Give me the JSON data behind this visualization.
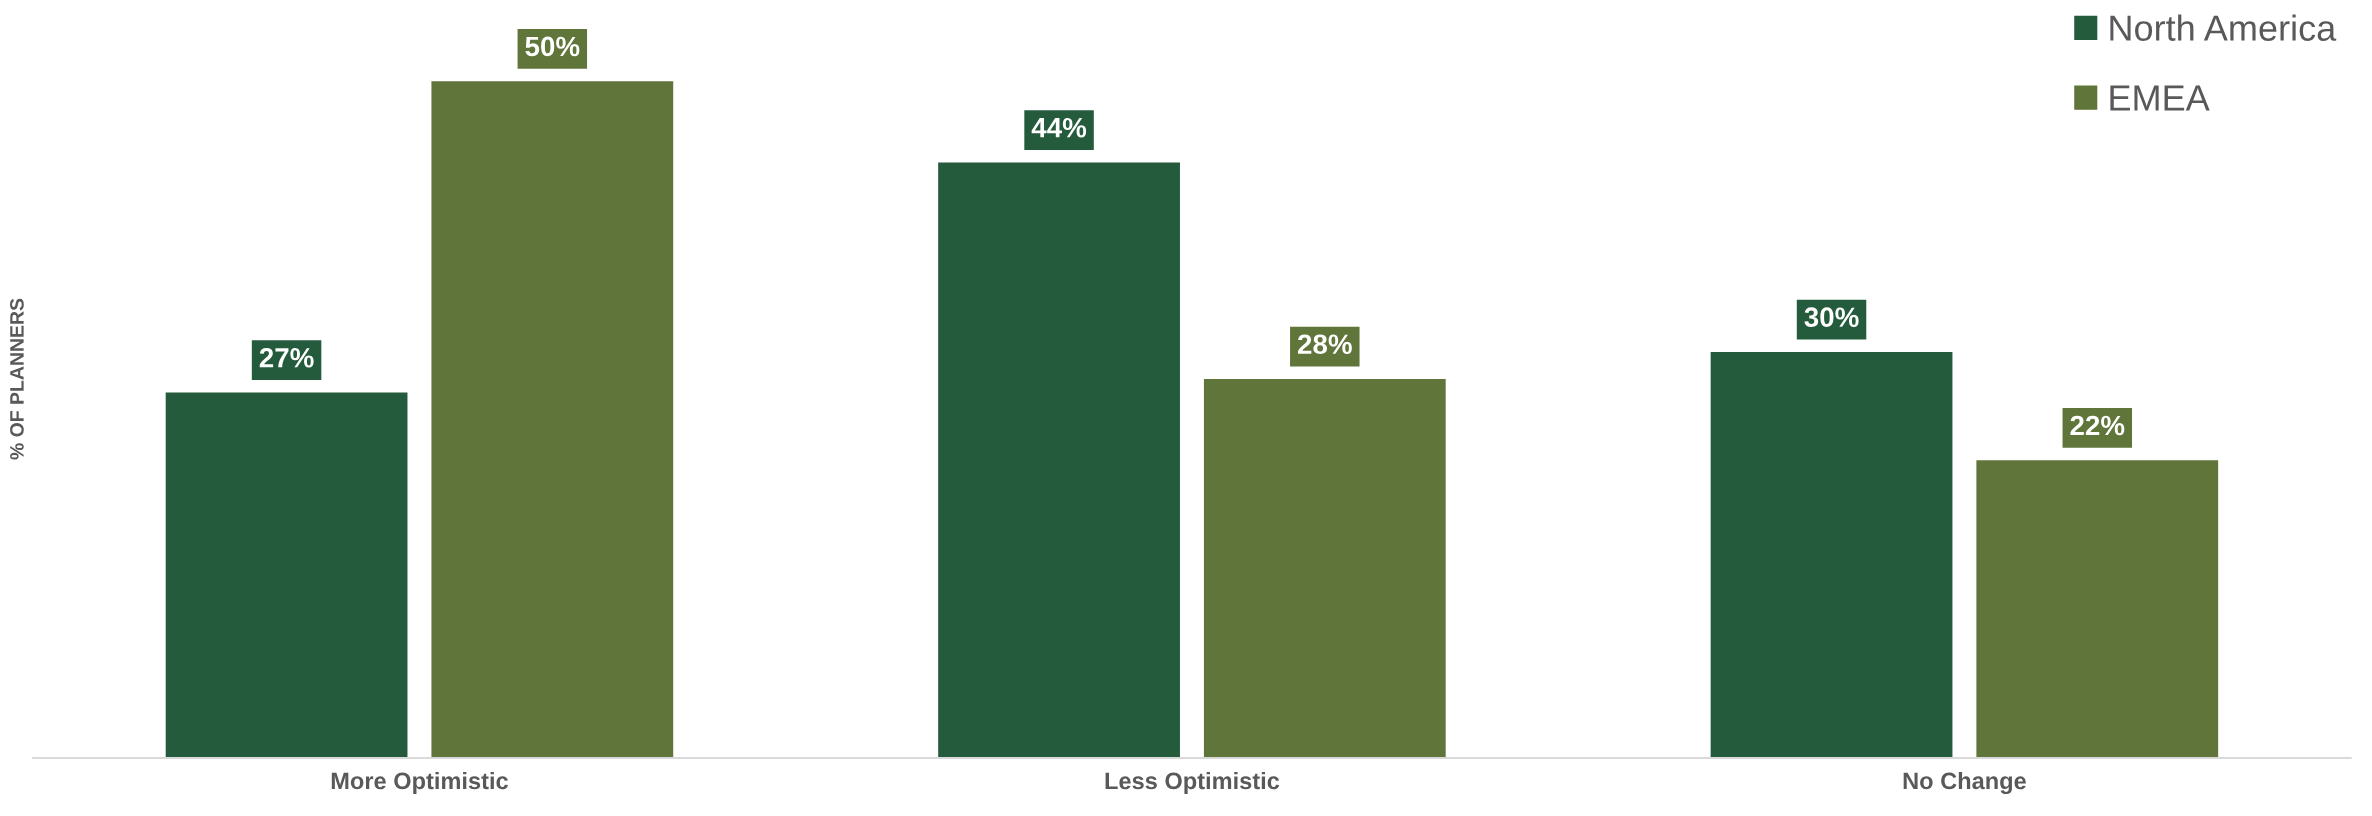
{
  "chart_data": {
    "type": "bar",
    "ylabel": "% OF PLANNERS",
    "categories": [
      "More Optimistic",
      "Less Optimistic",
      "No Change"
    ],
    "series": [
      {
        "name": "North America",
        "color": "#235b3c",
        "values": [
          27,
          44,
          30
        ],
        "value_labels": [
          "27%",
          "44%",
          "30%"
        ]
      },
      {
        "name": "EMEA",
        "color": "#60753a",
        "values": [
          50,
          28,
          22
        ],
        "value_labels": [
          "50%",
          "28%",
          "22%"
        ]
      }
    ],
    "tick_labels": "x",
    "legend": "top right",
    "grid": false
  }
}
